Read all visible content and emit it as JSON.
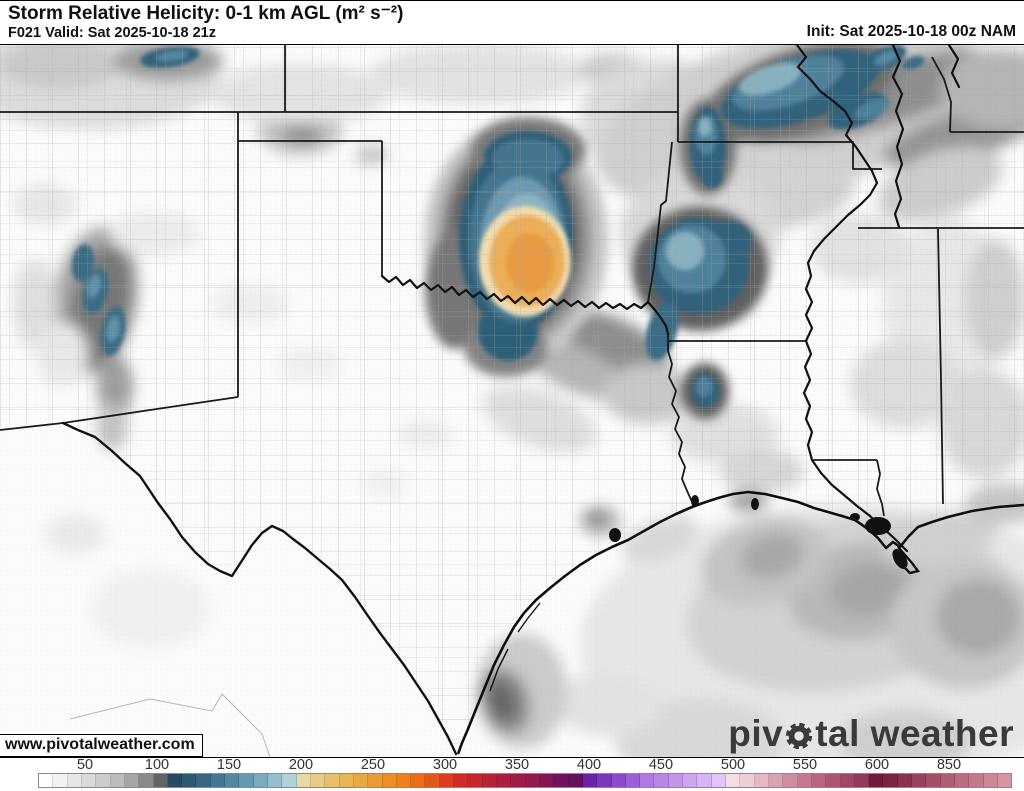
{
  "header": {
    "title": "Storm Relative Helicity: 0-1 km AGL (m² s⁻²)",
    "subtitle": "F021 Valid: Sat 2025-10-18 21z",
    "init": "Init: Sat 2025-10-18 00z NAM"
  },
  "map": {
    "watermark": "www.pivotalweather.com",
    "logo_text_1": "piv",
    "logo_text_2": "tal weather"
  },
  "palette": {
    "blue_outer": "#31627c",
    "blue_mid": "#4f819b",
    "blue_light": "#87b0c1",
    "cream_ring": "#f2dcae",
    "orange_core": "#e89b40",
    "halo_dark": "#606060",
    "state_border": "#1a1a1a",
    "county_line": "#a8a8a8"
  },
  "colorbar": {
    "ticks": [
      {
        "label": "50",
        "pos": 4.83
      },
      {
        "label": "100",
        "pos": 12.22
      },
      {
        "label": "150",
        "pos": 19.61
      },
      {
        "label": "200",
        "pos": 27.0
      },
      {
        "label": "250",
        "pos": 34.39
      },
      {
        "label": "300",
        "pos": 41.79
      },
      {
        "label": "350",
        "pos": 49.18
      },
      {
        "label": "400",
        "pos": 56.57
      },
      {
        "label": "450",
        "pos": 63.96
      },
      {
        "label": "500",
        "pos": 71.36
      },
      {
        "label": "550",
        "pos": 78.75
      },
      {
        "label": "600",
        "pos": 86.14
      },
      {
        "label": "850",
        "pos": 93.53
      }
    ],
    "segments": [
      "#ffffff",
      "#f2f2f2",
      "#e6e6e6",
      "#d9d9d9",
      "#cccccc",
      "#bcbcbc",
      "#a6a6a6",
      "#8a8a8a",
      "#636363",
      "#274b61",
      "#2e5973",
      "#376785",
      "#427795",
      "#5187a3",
      "#639ab1",
      "#7bacbe",
      "#95bfcc",
      "#b0d1da",
      "#ead7a2",
      "#e8cc86",
      "#e6c06c",
      "#e7b456",
      "#e9a844",
      "#eb9b34",
      "#ed8e27",
      "#ee801e",
      "#ea6d1a",
      "#e3571c",
      "#da3d20",
      "#d02c25",
      "#c5262e",
      "#b92138",
      "#ab1d41",
      "#a01c46",
      "#921a4e",
      "#821656",
      "#70125e",
      "#641260",
      "#6b21aa",
      "#7c35bc",
      "#8d4aca",
      "#9e60d6",
      "#b078e0",
      "#ba84e4",
      "#c493ea",
      "#cfa5f0",
      "#d9b5f4",
      "#e2c5f8",
      "#f3dee3",
      "#eecdd5",
      "#e6b8c4",
      "#dba2b2",
      "#cf8da0",
      "#c47990",
      "#b96682",
      "#ad5674",
      "#a04768",
      "#93395c",
      "#6e1d3c",
      "#7b2544",
      "#8a3350",
      "#97415c",
      "#a34f68",
      "#ae5d74",
      "#b96b80",
      "#c3798c",
      "#cd8798",
      "#d695a4"
    ]
  }
}
